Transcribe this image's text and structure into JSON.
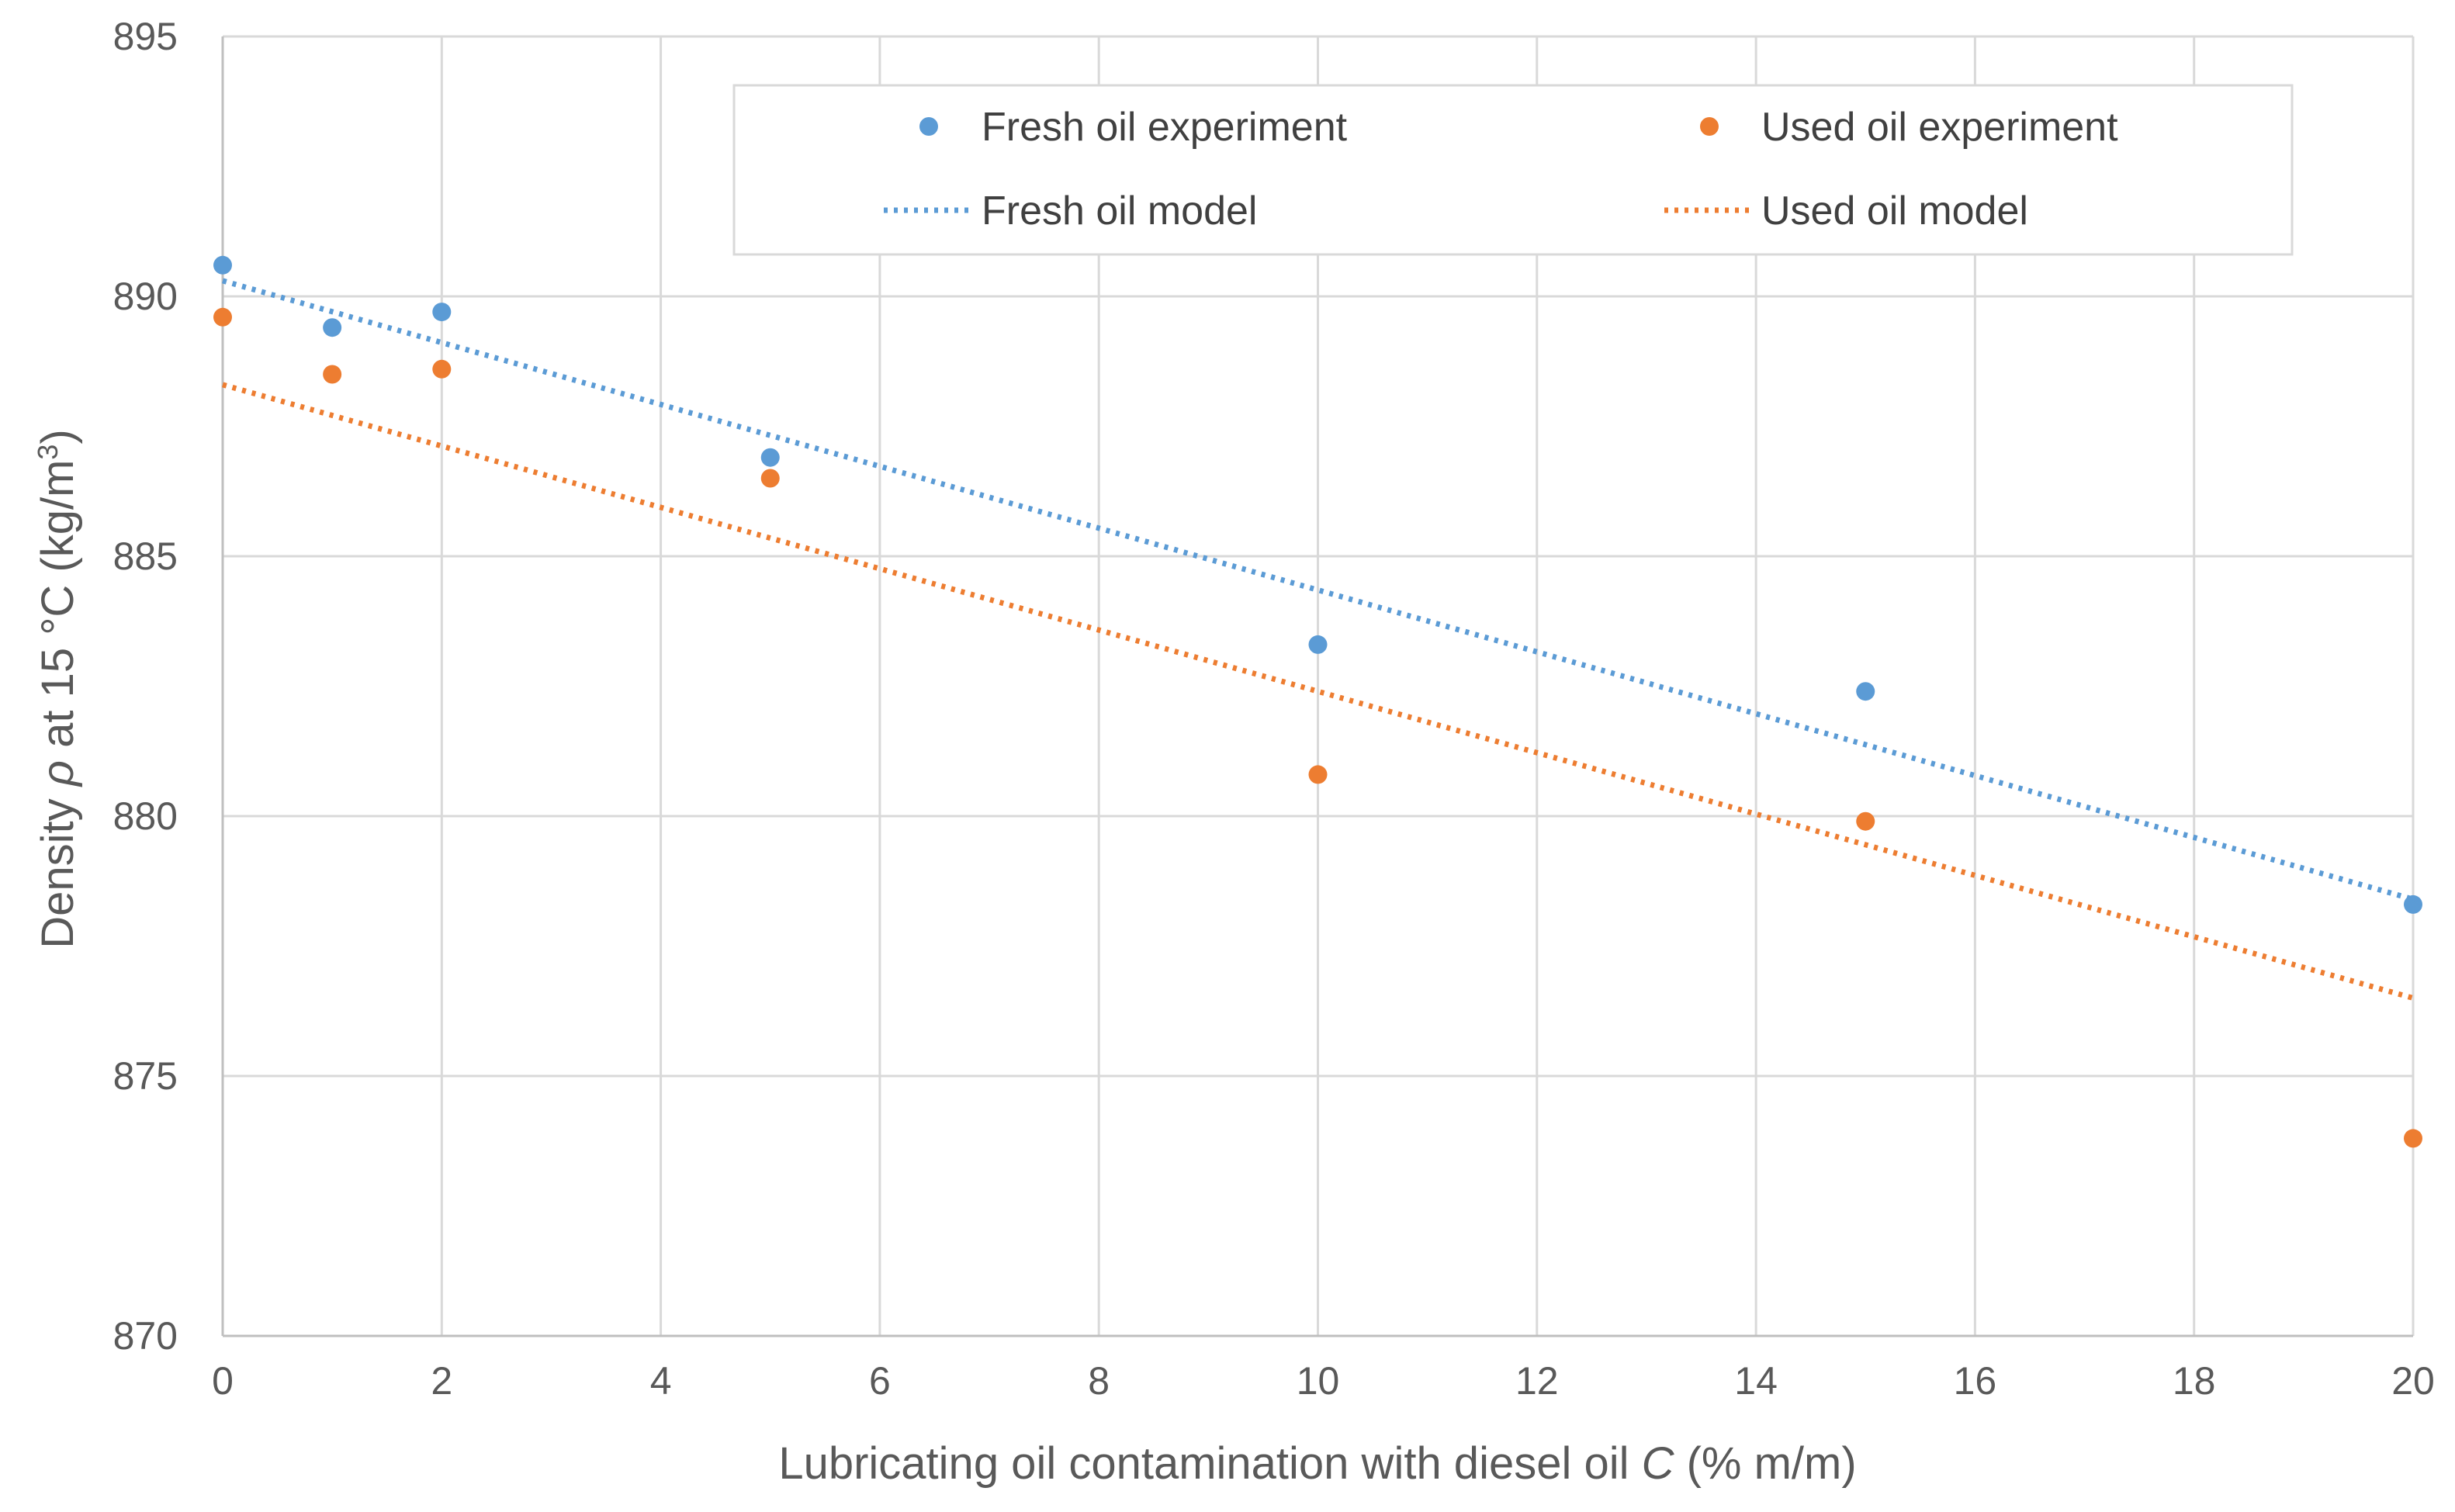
{
  "chart_data": {
    "type": "scatter",
    "title": "",
    "xlabel": {
      "prefix": "Lubricating oil contamination with diesel oil ",
      "var": "C",
      "suffix": " (% m/m)"
    },
    "ylabel": {
      "prefix": "Density ",
      "var": "ρ",
      "mid": " at 15 °C (kg/m",
      "sup": "3",
      "end": ")"
    },
    "xlim": [
      0,
      20
    ],
    "ylim": [
      870,
      895
    ],
    "xticks": [
      "0",
      "2",
      "4",
      "6",
      "8",
      "10",
      "12",
      "14",
      "16",
      "18",
      "20"
    ],
    "yticks": [
      "870",
      "875",
      "880",
      "885",
      "890",
      "895"
    ],
    "grid": true,
    "legend_position": "top-right",
    "series": [
      {
        "name": "Fresh oil experiment",
        "kind": "points",
        "color": "#5B9BD5",
        "x": [
          0,
          1,
          2,
          5,
          10,
          15,
          20
        ],
        "y": [
          890.6,
          889.4,
          889.7,
          886.9,
          883.3,
          882.4,
          878.3
        ]
      },
      {
        "name": "Used oil experiment",
        "kind": "points",
        "color": "#ED7D31",
        "x": [
          0,
          1,
          2,
          5,
          10,
          15,
          20
        ],
        "y": [
          889.6,
          888.5,
          888.6,
          886.5,
          880.8,
          879.9,
          873.8
        ]
      },
      {
        "name": "Fresh oil model",
        "kind": "dotted-line",
        "color": "#5B9BD5",
        "x": [
          0,
          20
        ],
        "y": [
          890.3,
          878.4
        ]
      },
      {
        "name": "Used oil model",
        "kind": "dotted-line",
        "color": "#ED7D31",
        "x": [
          0,
          20
        ],
        "y": [
          888.3,
          876.5
        ]
      }
    ],
    "legend": [
      {
        "label": "Fresh oil experiment",
        "symbol": "dot",
        "color": "#5B9BD5"
      },
      {
        "label": "Used oil experiment",
        "symbol": "dot",
        "color": "#ED7D31"
      },
      {
        "label": "Fresh oil model",
        "symbol": "dotted-line",
        "color": "#5B9BD5"
      },
      {
        "label": "Used oil model",
        "symbol": "dotted-line",
        "color": "#ED7D31"
      }
    ]
  }
}
